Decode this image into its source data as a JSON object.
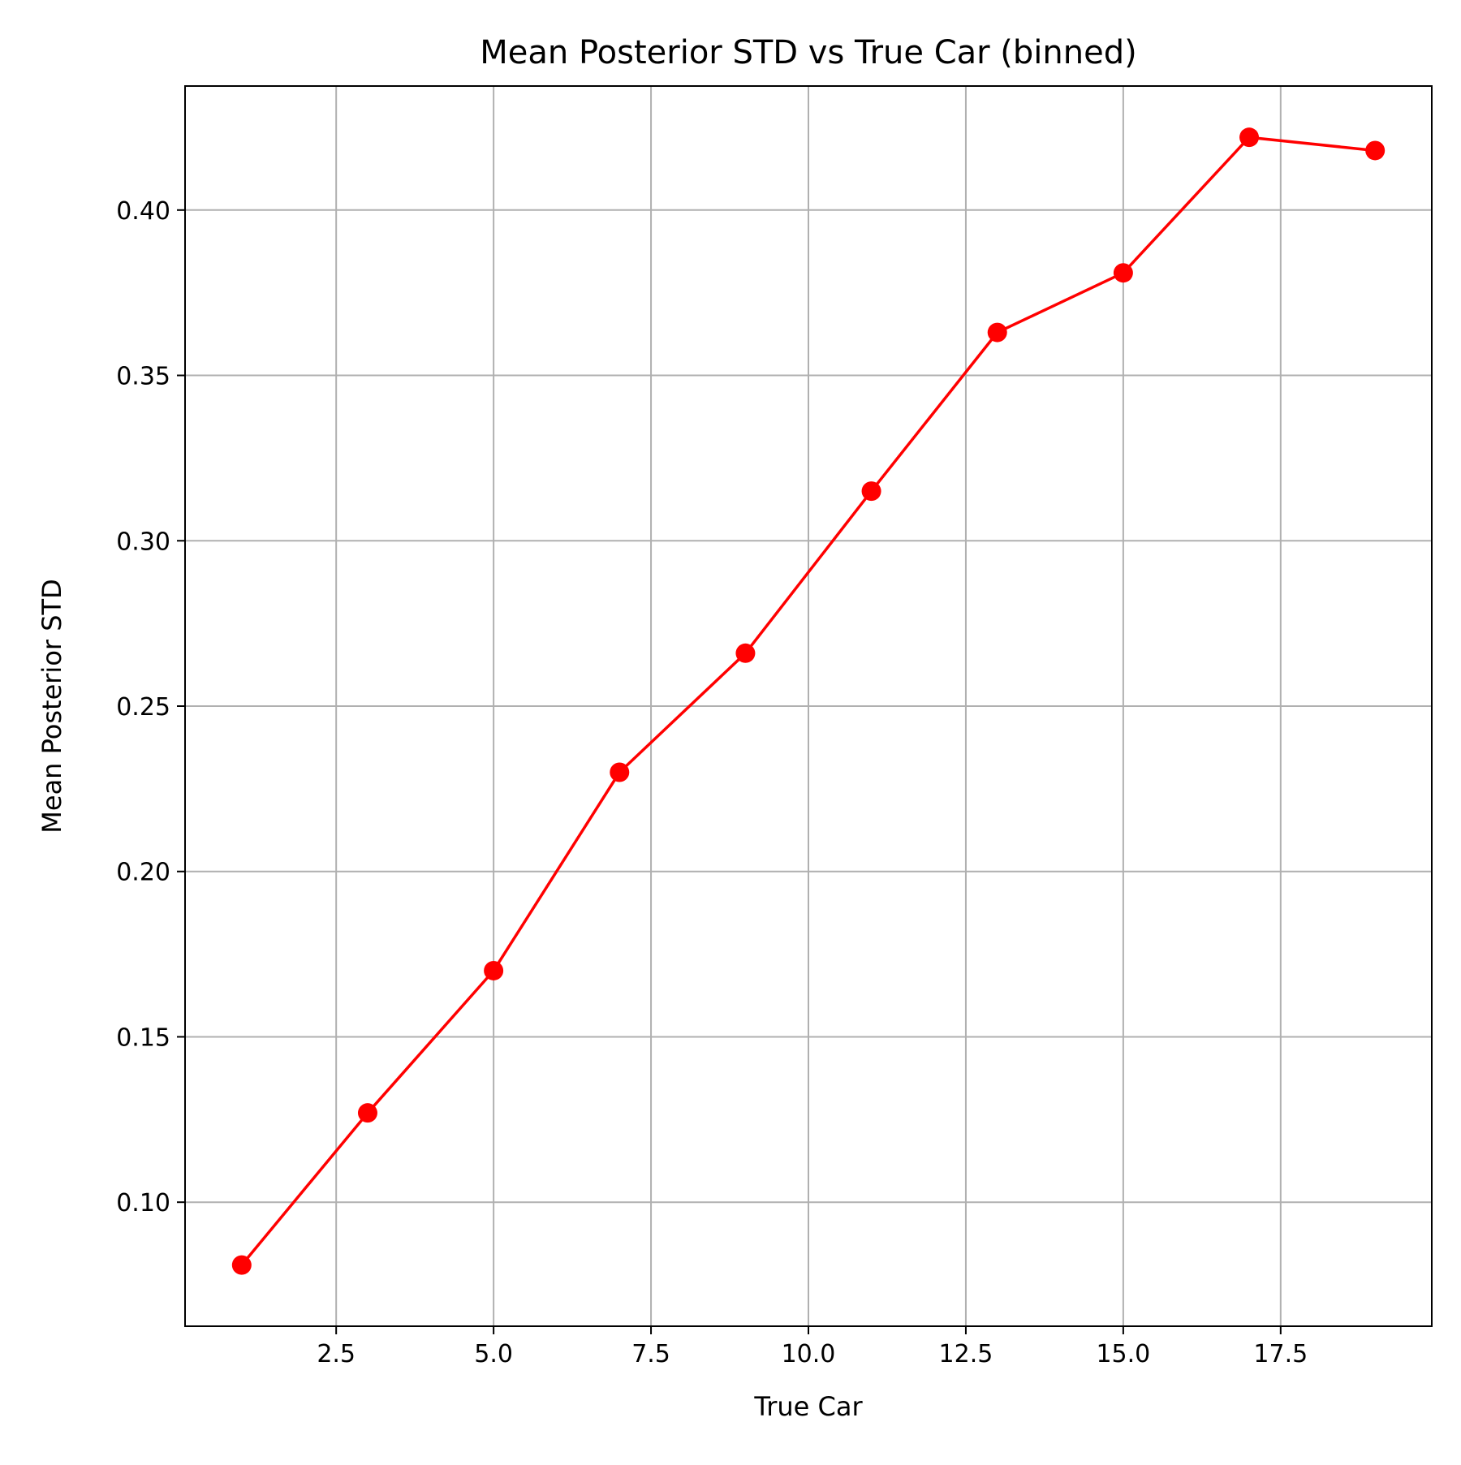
{
  "chart_data": {
    "type": "line",
    "title": "Mean Posterior STD vs True Car (binned)",
    "xlabel": "True Car",
    "ylabel": "Mean Posterior STD",
    "xlim": [
      0.1,
      19.9
    ],
    "ylim": [
      0.0625,
      0.4375
    ],
    "x_ticks": [
      2.5,
      5.0,
      7.5,
      10.0,
      12.5,
      15.0,
      17.5
    ],
    "x_tick_labels": [
      "2.5",
      "5.0",
      "7.5",
      "10.0",
      "12.5",
      "15.0",
      "17.5"
    ],
    "y_ticks": [
      0.1,
      0.15,
      0.2,
      0.25,
      0.3,
      0.35,
      0.4
    ],
    "y_tick_labels": [
      "0.10",
      "0.15",
      "0.20",
      "0.25",
      "0.30",
      "0.35",
      "0.40"
    ],
    "grid": true,
    "series": [
      {
        "color": "#ff0000",
        "marker": "circle",
        "x": [
          1,
          3,
          5,
          7,
          9,
          11,
          13,
          15,
          17,
          19
        ],
        "y": [
          0.081,
          0.127,
          0.17,
          0.23,
          0.266,
          0.315,
          0.363,
          0.381,
          0.422,
          0.418
        ]
      }
    ]
  }
}
